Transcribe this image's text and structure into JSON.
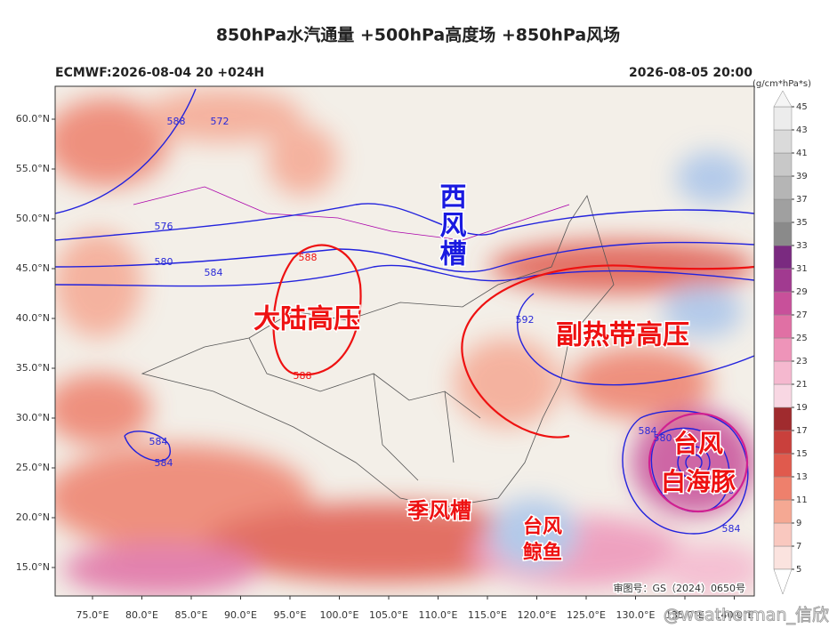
{
  "title": "850hPa水汽通量 +500hPa高度场 +850hPa风场",
  "header_left": "ECMWF:2026-08-04 20 +024H",
  "header_right": "2026-08-05 20:00",
  "lat_labels": [
    "60.0°N",
    "55.0°N",
    "50.0°N",
    "45.0°N",
    "40.0°N",
    "35.0°N",
    "30.0°N",
    "25.0°N",
    "20.0°N",
    "15.0°N"
  ],
  "lon_labels": [
    "75.0°E",
    "80.0°E",
    "85.0°E",
    "90.0°E",
    "95.0°E",
    "100.0°E",
    "105.0°E",
    "110.0°E",
    "115.0°E",
    "120.0°E",
    "125.0°E",
    "130.0°E",
    "135.0°E",
    "140.0°E"
  ],
  "contour_labels": [
    "588",
    "572",
    "576",
    "580",
    "584",
    "588",
    "588",
    "592",
    "584",
    "584",
    "584",
    "580",
    "580",
    "584"
  ],
  "annotations": {
    "westerly_trough": "西风槽",
    "continental_high": "大陆高压",
    "subtropical_high": "副热带高压",
    "typhoon_1": [
      "台风",
      "白海豚"
    ],
    "monsoon_trough": "季风槽",
    "typhoon_2": [
      "台风",
      "鲸鱼"
    ]
  },
  "map_approval": "审图号：GS（2024）0650号",
  "watermark": "@weatherman_信欣",
  "colorbar": {
    "unit": "(g/cm*hPa*s)",
    "levels": [
      5,
      7,
      9,
      11,
      13,
      15,
      17,
      19,
      21,
      23,
      25,
      27,
      29,
      31,
      33,
      35,
      37,
      39,
      41,
      43,
      45
    ],
    "colors": [
      "#fbe3df",
      "#f9c8bf",
      "#f5a893",
      "#ee806c",
      "#e05a4d",
      "#c9403c",
      "#a02b2e",
      "#f8d7e3",
      "#f5b8cf",
      "#ee94b9",
      "#e070a4",
      "#c8509a",
      "#a13a90",
      "#7a2a80",
      "#8a8a8a",
      "#a0a0a0",
      "#b5b5b5",
      "#c8c8c8",
      "#dadada",
      "#ececec"
    ]
  }
}
